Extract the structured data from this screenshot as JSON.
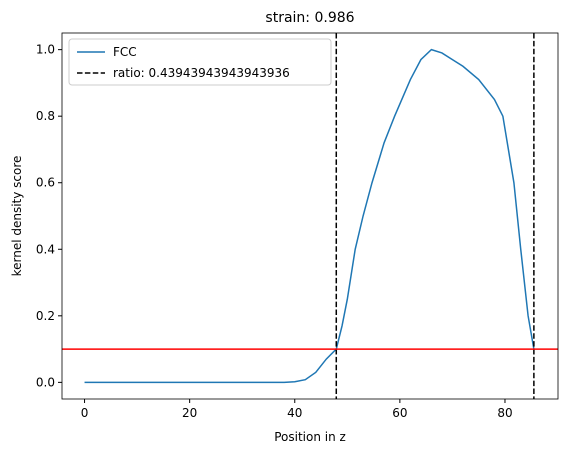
{
  "chart_data": {
    "type": "line",
    "title": "strain: 0.986",
    "xlabel": "Position in z",
    "ylabel": "kernel density score",
    "x": [
      0,
      10,
      20,
      30,
      38,
      40,
      42,
      44,
      46,
      47.9,
      49,
      50,
      51.5,
      53,
      54.7,
      57,
      59,
      62,
      64,
      66,
      68,
      70,
      72,
      75,
      78,
      79.6,
      81.7,
      83,
      84.4,
      85.5
    ],
    "series": [
      {
        "name": "FCC",
        "color": "#1f77b4",
        "values": [
          0,
          0,
          0,
          0,
          0,
          0.002,
          0.008,
          0.03,
          0.07,
          0.1,
          0.17,
          0.25,
          0.4,
          0.5,
          0.6,
          0.72,
          0.8,
          0.91,
          0.97,
          1.0,
          0.99,
          0.97,
          0.95,
          0.91,
          0.85,
          0.8,
          0.6,
          0.4,
          0.2,
          0.1
        ]
      }
    ],
    "vlines": {
      "name": "ratio: 0.43943943943943936",
      "color": "#000000",
      "values": [
        47.9,
        85.5
      ]
    },
    "hline": {
      "value": 0.1,
      "color": "#ff0000"
    },
    "xlim": [
      -4.29,
      90.09
    ],
    "ylim": [
      -0.05,
      1.05
    ],
    "xticks": [
      0,
      20,
      40,
      60,
      80
    ],
    "yticks": [
      {
        "value": 0,
        "label": "0.0"
      },
      {
        "value": 0.2,
        "label": "0.2"
      },
      {
        "value": 0.4,
        "label": "0.4"
      },
      {
        "value": 0.6,
        "label": "0.6"
      },
      {
        "value": 0.8,
        "label": "0.8"
      },
      {
        "value": 1.0,
        "label": "1.0"
      }
    ],
    "legend": "upper left"
  }
}
